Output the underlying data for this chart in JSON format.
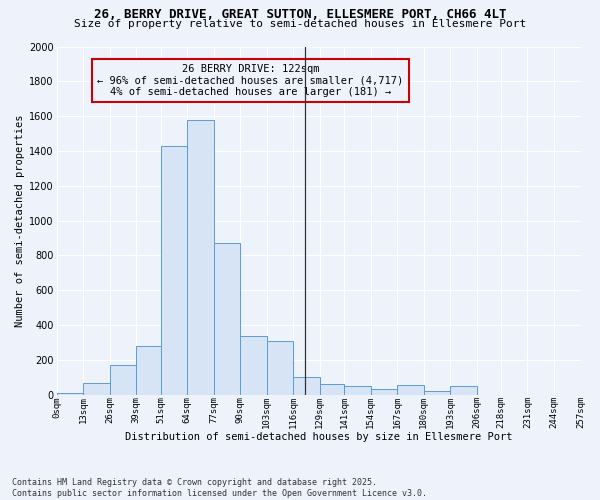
{
  "title_line1": "26, BERRY DRIVE, GREAT SUTTON, ELLESMERE PORT, CH66 4LT",
  "title_line2": "Size of property relative to semi-detached houses in Ellesmere Port",
  "xlabel": "Distribution of semi-detached houses by size in Ellesmere Port",
  "ylabel": "Number of semi-detached properties",
  "footer_line1": "Contains HM Land Registry data © Crown copyright and database right 2025.",
  "footer_line2": "Contains public sector information licensed under the Open Government Licence v3.0.",
  "annotation_line1": "26 BERRY DRIVE: 122sqm",
  "annotation_line2": "← 96% of semi-detached houses are smaller (4,717)",
  "annotation_line3": "4% of semi-detached houses are larger (181) →",
  "bar_color": "#d6e4f5",
  "bar_edge_color": "#5b9bd5",
  "vline_color": "#333333",
  "annotation_box_color": "#cc0000",
  "property_value": 122,
  "bins": [
    0,
    13,
    26,
    39,
    51,
    64,
    77,
    90,
    103,
    116,
    129,
    141,
    154,
    167,
    180,
    193,
    206,
    218,
    231,
    244,
    257
  ],
  "counts": [
    10,
    70,
    170,
    280,
    1430,
    1580,
    870,
    340,
    310,
    100,
    60,
    50,
    35,
    55,
    20,
    50,
    0,
    0,
    0,
    0
  ],
  "tick_labels": [
    "0sqm",
    "13sqm",
    "26sqm",
    "39sqm",
    "51sqm",
    "64sqm",
    "77sqm",
    "90sqm",
    "103sqm",
    "116sqm",
    "129sqm",
    "141sqm",
    "154sqm",
    "167sqm",
    "180sqm",
    "193sqm",
    "206sqm",
    "218sqm",
    "231sqm",
    "244sqm",
    "257sqm"
  ],
  "ylim": [
    0,
    2000
  ],
  "yticks": [
    0,
    200,
    400,
    600,
    800,
    1000,
    1200,
    1400,
    1600,
    1800,
    2000
  ],
  "background_color": "#eef2fb",
  "grid_color": "#ffffff",
  "figsize": [
    6.0,
    5.0
  ],
  "dpi": 100
}
